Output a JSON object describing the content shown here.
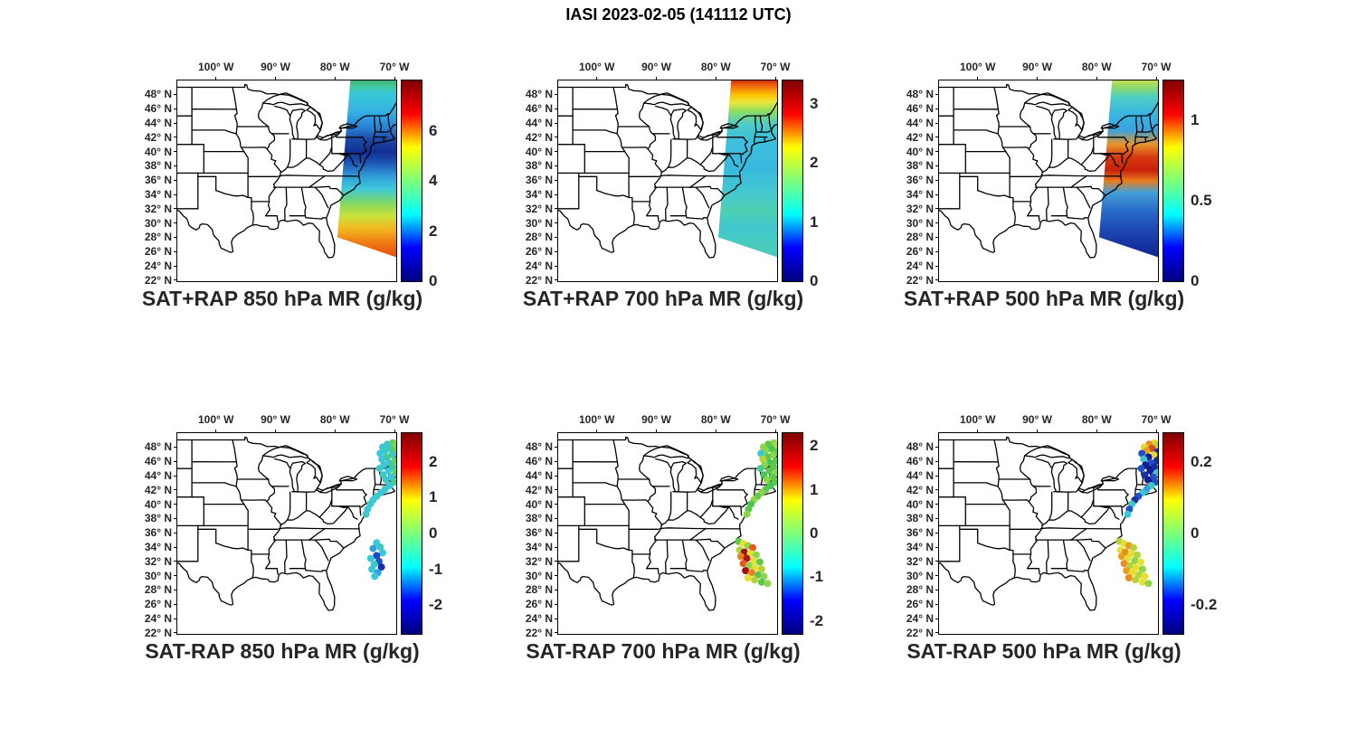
{
  "figure_title": "IASI 2023-02-05 (141112 UTC)",
  "colors": {
    "background": "#ffffff",
    "map_outline": "#000000",
    "axis_text": "#262626",
    "jet": [
      "#00007f",
      "#0000ff",
      "#00ffff",
      "#7dff7a",
      "#ffff00",
      "#ff0000",
      "#7f0000"
    ]
  },
  "axes": {
    "lon_tick_labels": [
      "100° W",
      "90° W",
      "80° W",
      "70° W"
    ],
    "lon_tick_values": [
      100,
      90,
      80,
      70
    ],
    "lat_tick_labels": [
      "48° N",
      "46° N",
      "44° N",
      "42° N",
      "40° N",
      "38° N",
      "36° N",
      "34° N",
      "32° N",
      "30° N",
      "28° N",
      "26° N",
      "24° N",
      "22° N"
    ],
    "lat_tick_values": [
      48,
      46,
      44,
      42,
      40,
      38,
      36,
      34,
      32,
      30,
      28,
      26,
      24,
      22
    ],
    "lon_range_deg_w": [
      106.5,
      69.6
    ],
    "lat_range_deg_n": [
      21.9,
      49.95
    ],
    "grid": false
  },
  "chart_data": [
    {
      "id": "sat-plus-rap-850",
      "type": "heatmap",
      "title": "SAT+RAP 850 hPa MR (g/kg)",
      "description": "IASI satellite + RAP retrieved 850 hPa water-vapor mixing ratio swath over the western Atlantic off the US east coast",
      "colorbar": {
        "colormap": "jet",
        "min": 0,
        "max": 8,
        "tick_labels": [
          "6",
          "4",
          "2",
          "0"
        ],
        "tick_values": [
          6,
          4,
          2,
          0
        ]
      },
      "swath": {
        "polygon_lonlat": [
          [
            77.4,
            50.2
          ],
          [
            67.5,
            50.2
          ],
          [
            67.5,
            24.6
          ],
          [
            79.6,
            28.0
          ]
        ],
        "gradient": [
          [
            0,
            "#3fae68"
          ],
          [
            0.04,
            "#45c89a"
          ],
          [
            0.08,
            "#38c8d8"
          ],
          [
            0.18,
            "#35b2e2"
          ],
          [
            0.27,
            "#2a7fd4"
          ],
          [
            0.33,
            "#1c4aa8"
          ],
          [
            0.4,
            "#132f93"
          ],
          [
            0.46,
            "#1c55b4"
          ],
          [
            0.53,
            "#2f9ad8"
          ],
          [
            0.6,
            "#3ec8dc"
          ],
          [
            0.68,
            "#7fd862"
          ],
          [
            0.75,
            "#c8e23c"
          ],
          [
            0.82,
            "#f2b81e"
          ],
          [
            0.9,
            "#ee7712"
          ],
          [
            1,
            "#e0400c"
          ]
        ]
      }
    },
    {
      "id": "sat-plus-rap-700",
      "type": "heatmap",
      "title": "SAT+RAP 700 hPa MR (g/kg)",
      "description": "IASI satellite + RAP retrieved 700 hPa water-vapor mixing ratio swath",
      "colorbar": {
        "colormap": "jet",
        "min": 0,
        "max": 3.4,
        "tick_labels": [
          "3",
          "2",
          "1",
          "0"
        ],
        "tick_values": [
          3,
          2,
          1,
          0
        ]
      },
      "swath": {
        "polygon_lonlat": [
          [
            77.4,
            50.2
          ],
          [
            67.5,
            50.2
          ],
          [
            67.5,
            24.6
          ],
          [
            79.6,
            28.0
          ]
        ],
        "gradient": [
          [
            0,
            "#c81e00"
          ],
          [
            0.04,
            "#f06a10"
          ],
          [
            0.09,
            "#ffc400"
          ],
          [
            0.13,
            "#e8e83c"
          ],
          [
            0.18,
            "#8adc64"
          ],
          [
            0.25,
            "#4cccc8"
          ],
          [
            0.35,
            "#3cbede"
          ],
          [
            0.5,
            "#38bade"
          ],
          [
            0.62,
            "#44c8cf"
          ],
          [
            0.72,
            "#4fcfb2"
          ],
          [
            0.82,
            "#3fc8cf"
          ],
          [
            0.92,
            "#4acbbb"
          ],
          [
            1,
            "#44c8c8"
          ]
        ]
      }
    },
    {
      "id": "sat-plus-rap-500",
      "type": "heatmap",
      "title": "SAT+RAP 500 hPa MR (g/kg)",
      "description": "IASI satellite + RAP retrieved 500 hPa water-vapor mixing ratio swath",
      "colorbar": {
        "colormap": "jet",
        "min": 0,
        "max": 1.25,
        "tick_labels": [
          "1",
          "0.5",
          "0"
        ],
        "tick_values": [
          1,
          0.5,
          0
        ]
      },
      "swath": {
        "polygon_lonlat": [
          [
            77.4,
            50.2
          ],
          [
            67.5,
            50.2
          ],
          [
            67.5,
            24.6
          ],
          [
            79.6,
            28.0
          ]
        ],
        "gradient": [
          [
            0,
            "#cde04a"
          ],
          [
            0.05,
            "#8ad86e"
          ],
          [
            0.1,
            "#4ecfc0"
          ],
          [
            0.18,
            "#3cb8e0"
          ],
          [
            0.28,
            "#39a2e0"
          ],
          [
            0.36,
            "#e8932a"
          ],
          [
            0.43,
            "#d8380e"
          ],
          [
            0.5,
            "#c8200a"
          ],
          [
            0.56,
            "#e87d1e"
          ],
          [
            0.62,
            "#46a0d8"
          ],
          [
            0.72,
            "#2a6cc8"
          ],
          [
            0.82,
            "#1e4ab4"
          ],
          [
            0.92,
            "#15309e"
          ],
          [
            1,
            "#0f1f8a"
          ]
        ]
      }
    },
    {
      "id": "sat-minus-rap-850",
      "type": "scatter",
      "title": "SAT-RAP 850 hPa MR (g/kg)",
      "description": "Difference (satellite minus RAP) of 850 hPa mixing ratio at matched observation points",
      "colorbar": {
        "colormap": "jet",
        "min": -2.8,
        "max": 2.8,
        "tick_labels": [
          "2",
          "1",
          "0",
          "-1",
          "-2"
        ],
        "tick_values": [
          2,
          1,
          0,
          -1,
          -2
        ]
      },
      "dots": [
        [
          70.3,
          48.6,
          "#62d24a"
        ],
        [
          71.2,
          48.4,
          "#3cc8c8"
        ],
        [
          69.9,
          48.2,
          "#7fd84a"
        ],
        [
          72.0,
          48.0,
          "#38c8dc"
        ],
        [
          70.7,
          47.8,
          "#46cc8e"
        ],
        [
          71.6,
          47.5,
          "#3cc8c8"
        ],
        [
          69.8,
          47.3,
          "#62d24a"
        ],
        [
          72.4,
          47.1,
          "#38c8dc"
        ],
        [
          70.4,
          46.9,
          "#3cc8c8"
        ],
        [
          71.3,
          46.6,
          "#46cc8e"
        ],
        [
          72.1,
          46.3,
          "#38c8dc"
        ],
        [
          69.9,
          46.1,
          "#62d24a"
        ],
        [
          70.9,
          45.8,
          "#3cc8c8"
        ],
        [
          71.8,
          45.5,
          "#38c8dc"
        ],
        [
          70.3,
          45.2,
          "#46cc8e"
        ],
        [
          72.5,
          45.0,
          "#3cc8c8"
        ],
        [
          71.0,
          44.7,
          "#38c8dc"
        ],
        [
          69.8,
          44.4,
          "#62d24a"
        ],
        [
          71.9,
          44.1,
          "#3cc8c8"
        ],
        [
          70.5,
          43.8,
          "#38c8dc"
        ],
        [
          71.4,
          43.4,
          "#3cc8c8"
        ],
        [
          70.1,
          43.1,
          "#46cc8e"
        ],
        [
          70.8,
          42.6,
          "#38c8dc"
        ],
        [
          71.6,
          42.1,
          "#3cc8c8"
        ],
        [
          72.3,
          41.6,
          "#38c8dc"
        ],
        [
          73.0,
          41.1,
          "#3cc8c8"
        ],
        [
          73.6,
          40.6,
          "#38c8dc"
        ],
        [
          74.1,
          40.0,
          "#3cc8c8"
        ],
        [
          74.5,
          39.3,
          "#38c8dc"
        ],
        [
          74.8,
          38.6,
          "#3cc8c8"
        ],
        [
          73.0,
          34.6,
          "#38c8dc"
        ],
        [
          72.4,
          34.0,
          "#3cc8c8"
        ],
        [
          73.6,
          33.8,
          "#2f9fe0"
        ],
        [
          72.0,
          33.2,
          "#38c8dc"
        ],
        [
          73.0,
          32.8,
          "#1e46c8"
        ],
        [
          74.0,
          32.4,
          "#38c8dc"
        ],
        [
          72.6,
          32.0,
          "#2050c8"
        ],
        [
          73.4,
          31.6,
          "#3cc8c8"
        ],
        [
          72.2,
          31.2,
          "#1930a0"
        ],
        [
          73.8,
          30.9,
          "#38c8dc"
        ],
        [
          72.8,
          30.4,
          "#2f9fe0"
        ],
        [
          73.3,
          29.9,
          "#38c8dc"
        ]
      ]
    },
    {
      "id": "sat-minus-rap-700",
      "type": "scatter",
      "title": "SAT-RAP 700 hPa MR (g/kg)",
      "description": "Difference (satellite minus RAP) of 700 hPa mixing ratio at matched observation points",
      "colorbar": {
        "colormap": "jet",
        "min": -2.3,
        "max": 2.3,
        "tick_labels": [
          "2",
          "1",
          "0",
          "-1",
          "-2"
        ],
        "tick_values": [
          2,
          1,
          0,
          -1,
          -2
        ]
      },
      "dots": [
        [
          70.3,
          48.6,
          "#8cd64a"
        ],
        [
          71.2,
          48.4,
          "#5bc84a"
        ],
        [
          69.9,
          48.2,
          "#b4d23c"
        ],
        [
          72.0,
          48.0,
          "#8cd64a"
        ],
        [
          70.7,
          47.8,
          "#46c65a"
        ],
        [
          71.6,
          47.5,
          "#8cd64a"
        ],
        [
          69.8,
          47.3,
          "#5bc84a"
        ],
        [
          72.4,
          47.1,
          "#3cc8c8"
        ],
        [
          70.4,
          46.9,
          "#8cd64a"
        ],
        [
          71.3,
          46.6,
          "#5bc84a"
        ],
        [
          72.1,
          46.3,
          "#b4d23c"
        ],
        [
          69.9,
          46.1,
          "#5bc84a"
        ],
        [
          70.9,
          45.8,
          "#46c65a"
        ],
        [
          71.8,
          45.5,
          "#8cd64a"
        ],
        [
          70.3,
          45.2,
          "#5bc84a"
        ],
        [
          72.5,
          45.0,
          "#46cc8e"
        ],
        [
          71.0,
          44.7,
          "#5bc84a"
        ],
        [
          69.8,
          44.4,
          "#8cd64a"
        ],
        [
          71.9,
          44.1,
          "#46c65a"
        ],
        [
          70.5,
          43.8,
          "#5bc84a"
        ],
        [
          71.4,
          43.4,
          "#8cd64a"
        ],
        [
          70.1,
          43.1,
          "#5bc84a"
        ],
        [
          70.8,
          42.6,
          "#46c65a"
        ],
        [
          71.6,
          42.1,
          "#5bc84a"
        ],
        [
          72.3,
          41.6,
          "#8cd64a"
        ],
        [
          73.0,
          41.1,
          "#5bc84a"
        ],
        [
          73.6,
          40.6,
          "#8cd64a"
        ],
        [
          74.1,
          40.0,
          "#46c65a"
        ],
        [
          74.5,
          39.3,
          "#5bc84a"
        ],
        [
          74.8,
          38.6,
          "#8cd64a"
        ],
        [
          76.2,
          34.8,
          "#5bc84a"
        ],
        [
          75.4,
          34.5,
          "#e6e032"
        ],
        [
          74.6,
          34.2,
          "#8cd64a"
        ],
        [
          73.8,
          33.9,
          "#e65a1e"
        ],
        [
          76.0,
          33.6,
          "#b4d23c"
        ],
        [
          75.2,
          33.3,
          "#a01010"
        ],
        [
          74.2,
          33.1,
          "#e6e032"
        ],
        [
          73.2,
          32.9,
          "#8cd64a"
        ],
        [
          75.8,
          32.7,
          "#e6821e"
        ],
        [
          74.8,
          32.4,
          "#b01616"
        ],
        [
          73.6,
          32.1,
          "#e6e032"
        ],
        [
          72.6,
          31.9,
          "#5bc84a"
        ],
        [
          75.4,
          31.7,
          "#e65a1e"
        ],
        [
          74.4,
          31.4,
          "#8cd64a"
        ],
        [
          73.4,
          31.1,
          "#e6e032"
        ],
        [
          72.3,
          30.9,
          "#b4d23c"
        ],
        [
          75.0,
          30.7,
          "#a01010"
        ],
        [
          74.0,
          30.4,
          "#e6821e"
        ],
        [
          72.9,
          30.1,
          "#5bc84a"
        ],
        [
          71.9,
          29.9,
          "#8cd64a"
        ],
        [
          74.6,
          29.7,
          "#e6e032"
        ],
        [
          73.5,
          29.4,
          "#b4d23c"
        ],
        [
          72.3,
          29.1,
          "#5bc84a"
        ],
        [
          71.3,
          28.9,
          "#8cd64a"
        ]
      ]
    },
    {
      "id": "sat-minus-rap-500",
      "type": "scatter",
      "title": "SAT-RAP 500 hPa MR (g/kg)",
      "description": "Difference (satellite minus RAP) of 500 hPa mixing ratio at matched observation points",
      "colorbar": {
        "colormap": "jet",
        "min": -0.28,
        "max": 0.28,
        "tick_labels": [
          "0.2",
          "0",
          "-0.2"
        ],
        "tick_values": [
          0.2,
          0,
          -0.2
        ]
      },
      "dots": [
        [
          70.3,
          48.6,
          "#e6d832"
        ],
        [
          71.2,
          48.4,
          "#eb8c1e"
        ],
        [
          69.9,
          48.2,
          "#b4d23c"
        ],
        [
          72.0,
          48.0,
          "#e6d832"
        ],
        [
          70.7,
          47.8,
          "#d24a1e"
        ],
        [
          71.6,
          47.5,
          "#e6a01e"
        ],
        [
          69.8,
          47.3,
          "#1930a0"
        ],
        [
          72.4,
          47.1,
          "#2050c8"
        ],
        [
          70.4,
          46.9,
          "#e6d832"
        ],
        [
          71.3,
          46.6,
          "#101e96"
        ],
        [
          72.1,
          46.3,
          "#3cc8c8"
        ],
        [
          69.9,
          46.1,
          "#1930a0"
        ],
        [
          70.9,
          45.8,
          "#2050c8"
        ],
        [
          71.8,
          45.5,
          "#101e96"
        ],
        [
          70.3,
          45.2,
          "#1930a0"
        ],
        [
          72.5,
          45.0,
          "#2050c8"
        ],
        [
          71.0,
          44.7,
          "#101e96"
        ],
        [
          69.8,
          44.4,
          "#3cc8c8"
        ],
        [
          71.9,
          44.1,
          "#1930a0"
        ],
        [
          70.5,
          43.8,
          "#2050c8"
        ],
        [
          71.4,
          43.4,
          "#101e96"
        ],
        [
          70.1,
          43.1,
          "#2050c8"
        ],
        [
          70.8,
          42.6,
          "#3cc8c8"
        ],
        [
          71.6,
          42.1,
          "#2f9fe0"
        ],
        [
          72.3,
          41.6,
          "#38c8dc"
        ],
        [
          73.0,
          41.1,
          "#2050c8"
        ],
        [
          73.6,
          40.6,
          "#1930a0"
        ],
        [
          74.1,
          40.0,
          "#3cc8c8"
        ],
        [
          74.5,
          39.3,
          "#2050c8"
        ],
        [
          74.8,
          38.6,
          "#38c8dc"
        ],
        [
          76.2,
          34.8,
          "#b4d23c"
        ],
        [
          75.4,
          34.5,
          "#e6e032"
        ],
        [
          74.6,
          34.2,
          "#e6a01e"
        ],
        [
          73.8,
          33.9,
          "#b4d23c"
        ],
        [
          76.0,
          33.6,
          "#e6e032"
        ],
        [
          75.2,
          33.3,
          "#eb8c1e"
        ],
        [
          74.2,
          33.1,
          "#e6e032"
        ],
        [
          73.2,
          32.9,
          "#b4d23c"
        ],
        [
          75.8,
          32.7,
          "#e6a01e"
        ],
        [
          74.8,
          32.4,
          "#e6e032"
        ],
        [
          73.6,
          32.1,
          "#8cd64a"
        ],
        [
          72.6,
          31.9,
          "#e6e032"
        ],
        [
          75.4,
          31.7,
          "#eb8c1e"
        ],
        [
          74.4,
          31.4,
          "#b4d23c"
        ],
        [
          73.4,
          31.1,
          "#e6e032"
        ],
        [
          72.3,
          30.9,
          "#8cd64a"
        ],
        [
          75.0,
          30.7,
          "#e6a01e"
        ],
        [
          74.0,
          30.4,
          "#e6e032"
        ],
        [
          72.9,
          30.1,
          "#b4d23c"
        ],
        [
          71.9,
          29.9,
          "#e6e032"
        ],
        [
          74.6,
          29.7,
          "#eb8c1e"
        ],
        [
          73.5,
          29.4,
          "#b4d23c"
        ],
        [
          72.3,
          29.1,
          "#e6e032"
        ],
        [
          71.3,
          28.9,
          "#8cd64a"
        ]
      ]
    }
  ]
}
